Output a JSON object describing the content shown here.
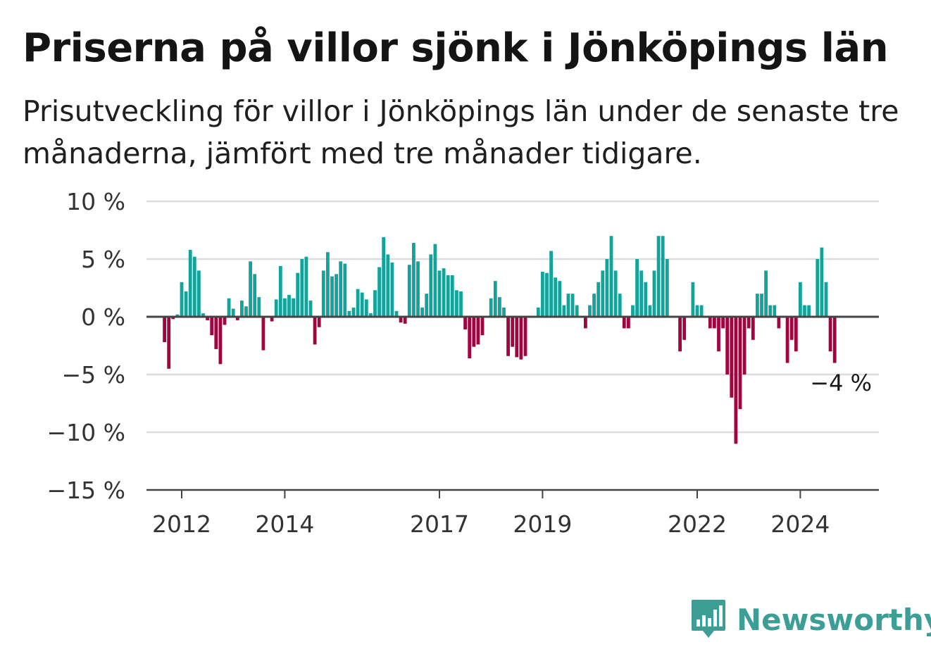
{
  "title": "Priserna på villor sjönk i Jönköpings län",
  "subtitle": "Prisutveckling för villor i Jönköpings län under de senaste tre månaderna, jämfört med tre månader tidigare.",
  "brand": {
    "name": "Newsworthy",
    "color": "#3d9e95"
  },
  "colors": {
    "positive": "#12a39a",
    "negative": "#a0053f",
    "grid": "#dddddd",
    "axis": "#444444"
  },
  "chart_data": {
    "type": "bar",
    "y_unit": "%",
    "ylim": [
      -15,
      10
    ],
    "y_ticks": [
      10,
      5,
      0,
      -5,
      -10,
      -15
    ],
    "y_tick_labels": [
      "10 %",
      "5 %",
      "0 %",
      "−5 %",
      "−10 %",
      "−15 %"
    ],
    "x_ticks": [
      "2012",
      "2014",
      "2017",
      "2019",
      "2022",
      "2024"
    ],
    "x_tick_positions": [
      "2012-01",
      "2014-01",
      "2017-01",
      "2019-01",
      "2022-01",
      "2024-01"
    ],
    "x_start": "2011-09",
    "end_label": "−4 %",
    "grid": true,
    "values": [
      -2.2,
      -4.5,
      -0.2,
      0.2,
      3.0,
      2.2,
      5.8,
      5.2,
      4.0,
      0.3,
      -0.3,
      -1.6,
      -2.8,
      -4.1,
      -0.7,
      1.6,
      0.7,
      -0.3,
      1.4,
      0.9,
      4.8,
      3.7,
      1.7,
      -2.9,
      0.0,
      -0.4,
      1.5,
      4.4,
      1.6,
      1.9,
      1.6,
      3.8,
      5.0,
      5.2,
      1.4,
      -2.4,
      -0.9,
      4.0,
      5.6,
      3.5,
      3.7,
      4.8,
      4.6,
      0.5,
      0.8,
      2.4,
      2.1,
      1.5,
      0.3,
      2.3,
      4.3,
      6.9,
      5.4,
      4.7,
      0.5,
      -0.5,
      -0.6,
      4.5,
      6.4,
      4.8,
      0.8,
      2.0,
      5.4,
      6.3,
      4.0,
      4.2,
      3.6,
      3.6,
      2.3,
      2.2,
      -1.1,
      -3.6,
      -2.6,
      -2.4,
      -1.6,
      0.0,
      1.6,
      3.1,
      1.7,
      0.8,
      -3.4,
      -2.6,
      -3.5,
      -3.7,
      -3.4,
      0.0,
      0.0,
      0.8,
      3.9,
      3.8,
      5.7,
      3.4,
      3.1,
      1.0,
      2.0,
      2.0,
      1.0,
      0.0,
      -1.0,
      1.0,
      2.0,
      3.0,
      4.0,
      5.0,
      7.0,
      4.0,
      2.0,
      -1.0,
      -1.0,
      1.0,
      5.0,
      4.0,
      3.0,
      1.0,
      4.0,
      7.0,
      7.0,
      5.0,
      0.0,
      0.0,
      -3.0,
      -2.0,
      0.0,
      3.0,
      1.0,
      1.0,
      0.0,
      -1.0,
      -1.0,
      -3.0,
      -1.0,
      -5.0,
      -7.0,
      -11.0,
      -8.0,
      -5.0,
      -1.0,
      -2.0,
      2.0,
      2.0,
      4.0,
      1.0,
      1.0,
      -1.0,
      0.0,
      -4.0,
      -2.0,
      -3.0,
      3.0,
      1.0,
      1.0,
      0.0,
      5.0,
      6.0,
      3.0,
      -3.0,
      -4.0
    ]
  }
}
